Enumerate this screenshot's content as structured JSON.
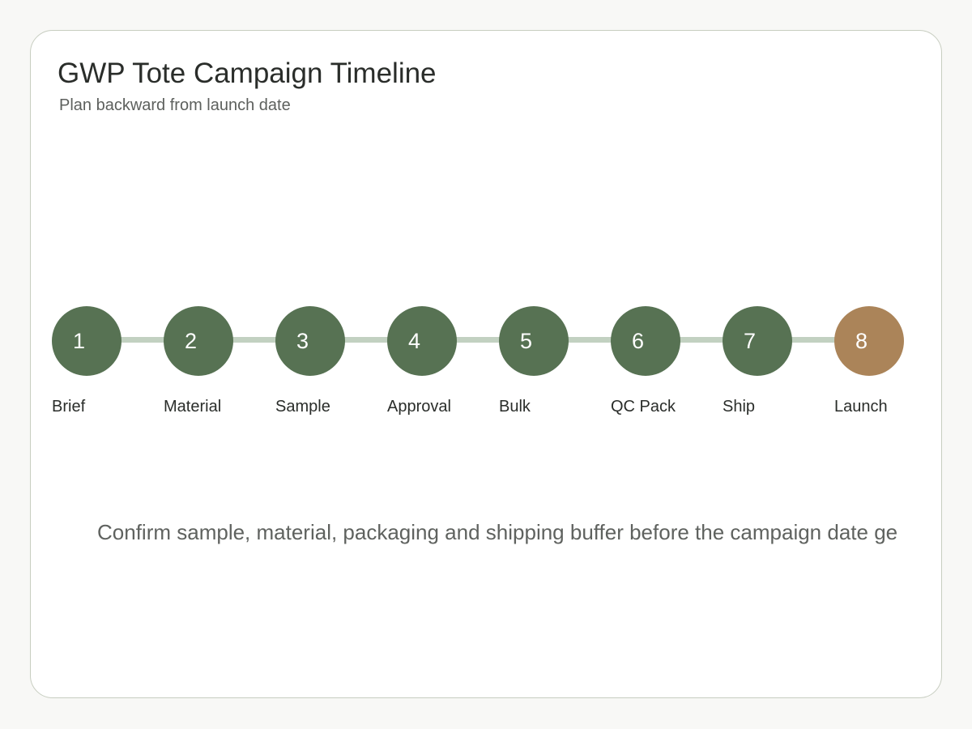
{
  "header": {
    "title": "GWP Tote Campaign Timeline",
    "subtitle": "Plan backward from launch date"
  },
  "colors": {
    "step": "#577253",
    "final_step": "#ab8459",
    "connector": "#c2d1c1"
  },
  "steps": [
    {
      "number": "1",
      "label": "Brief"
    },
    {
      "number": "2",
      "label": "Material"
    },
    {
      "number": "3",
      "label": "Sample"
    },
    {
      "number": "4",
      "label": "Approval"
    },
    {
      "number": "5",
      "label": "Bulk"
    },
    {
      "number": "6",
      "label": "QC Pack"
    },
    {
      "number": "7",
      "label": "Ship"
    },
    {
      "number": "8",
      "label": "Launch"
    }
  ],
  "note": "Confirm sample, material, packaging and shipping buffer before the campaign date ge"
}
